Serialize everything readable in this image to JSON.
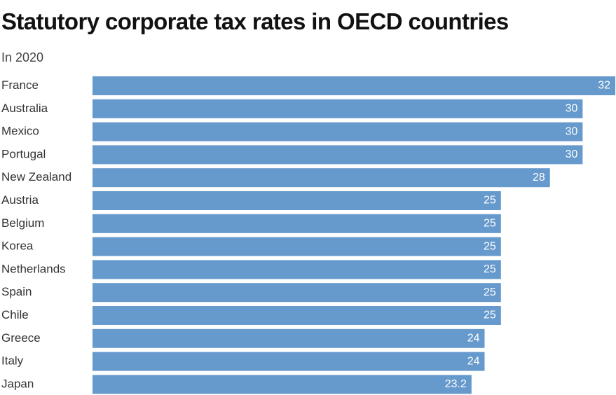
{
  "chart_data": {
    "type": "bar",
    "orientation": "horizontal",
    "title": "Statutory corporate tax rates in OECD countries",
    "subtitle": "In 2020",
    "categories": [
      "France",
      "Australia",
      "Mexico",
      "Portugal",
      "New Zealand",
      "Austria",
      "Belgium",
      "Korea",
      "Netherlands",
      "Spain",
      "Chile",
      "Greece",
      "Italy",
      "Japan"
    ],
    "values": [
      32,
      30,
      30,
      30,
      28,
      25,
      25,
      25,
      25,
      25,
      25,
      24,
      24,
      23.2
    ],
    "value_labels": [
      "32",
      "30",
      "30",
      "30",
      "28",
      "25",
      "25",
      "25",
      "25",
      "25",
      "25",
      "24",
      "24",
      "23.2"
    ],
    "xlim": [
      0,
      32
    ],
    "grid": false,
    "legend": "none",
    "bar_color": "#6699cc",
    "value_label_color": "#ffffff"
  }
}
